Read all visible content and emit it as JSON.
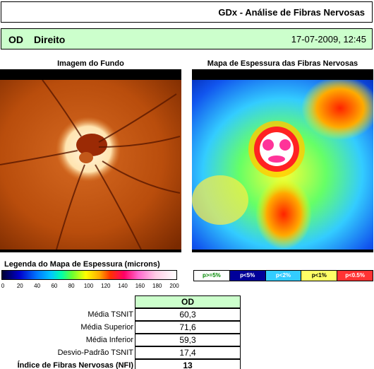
{
  "header": {
    "title": "GDx - Análise de Fibras Nervosas"
  },
  "patient": {
    "eye": "OD",
    "side": "Direito",
    "datetime": "17-07-2009, 12:45"
  },
  "panels": {
    "fundus_label": "Imagem do Fundo",
    "thickness_label": "Mapa de Espessura das Fibras Nervosas"
  },
  "legend": {
    "title": "Legenda do Mapa de Espessura (microns)",
    "ticks": [
      "0",
      "20",
      "40",
      "60",
      "80",
      "100",
      "120",
      "140",
      "160",
      "180",
      "200"
    ]
  },
  "probability_key": {
    "items": [
      {
        "label": "p>=5%",
        "color": "#ffffff",
        "text_color": "#008800"
      },
      {
        "label": "p<5%",
        "color": "#000099",
        "text_color": "#ffffff"
      },
      {
        "label": "p<2%",
        "color": "#33ccff",
        "text_color": "#ffffff"
      },
      {
        "label": "p<1%",
        "color": "#ffff66",
        "text_color": "#000000"
      },
      {
        "label": "p<0.5%",
        "color": "#ff3333",
        "text_color": "#ffffff"
      }
    ]
  },
  "table": {
    "column": "OD",
    "rows": [
      {
        "label": "Média TSNIT",
        "value": "60,3"
      },
      {
        "label": "Média Superior",
        "value": "71,6"
      },
      {
        "label": "Média Inferior",
        "value": "59,3"
      },
      {
        "label": "Desvio-Padrão TSNIT",
        "value": "17,4"
      },
      {
        "label": "Índice de Fibras Nervosas (NFI)",
        "value": "13"
      }
    ]
  }
}
